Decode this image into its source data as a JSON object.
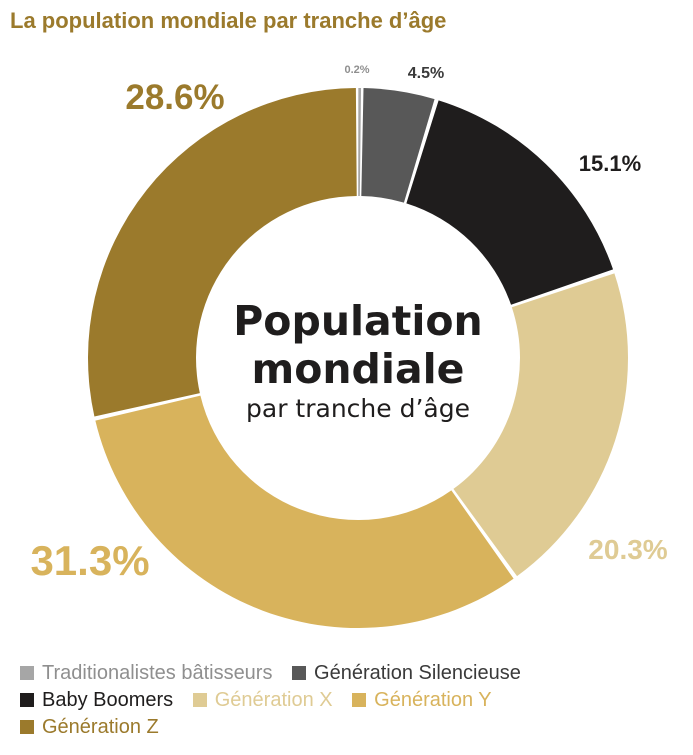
{
  "title": "La population mondiale par tranche d’âge",
  "center": {
    "line1": "Population",
    "line2": "mondiale",
    "line3": "par tranche d’âge"
  },
  "chart_data": {
    "type": "pie",
    "donut": true,
    "title": "La population mondiale par tranche d’âge",
    "categories": [
      "Traditionalistes bâtisseurs",
      "Génération Silencieuse",
      "Baby Boomers",
      "Génération X",
      "Génération Y",
      "Génération Z"
    ],
    "values": [
      0.2,
      4.5,
      15.1,
      20.3,
      31.3,
      28.6
    ],
    "value_labels": [
      "0.2%",
      "4.5%",
      "15.1%",
      "20.3%",
      "31.3%",
      "28.6%"
    ],
    "colors": [
      "#a6a6a6",
      "#585858",
      "#1f1d1d",
      "#dfcb94",
      "#d8b35c",
      "#9b7a2c"
    ],
    "legend_text_colors": [
      "#8f8f8f",
      "#3a3a3a",
      "#1f1d1d",
      "#dfcb94",
      "#d8b35c",
      "#9b7a2c"
    ],
    "label_colors": [
      "#8f8f8f",
      "#3a3a3a",
      "#1f1d1d",
      "#dfcb94",
      "#d8b35c",
      "#9b7a2c"
    ],
    "legend_position": "bottom"
  }
}
